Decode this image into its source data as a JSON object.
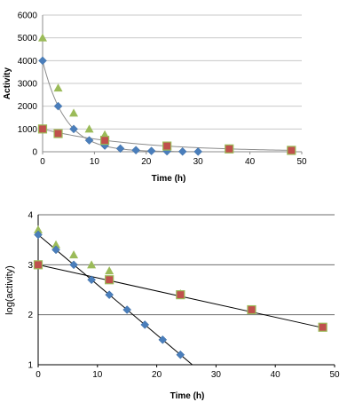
{
  "chart_data": [
    {
      "type": "scatter",
      "title": "",
      "xlabel": "Time (h)",
      "ylabel": "Activity",
      "xlim": [
        0,
        50
      ],
      "ylim": [
        0,
        6000
      ],
      "x_ticks": [
        "0",
        "10",
        "20",
        "30",
        "40",
        "50"
      ],
      "y_ticks": [
        "0",
        "1000",
        "2000",
        "3000",
        "4000",
        "5000",
        "6000"
      ],
      "grid": true,
      "legend": "none",
      "series": [
        {
          "marker": "diamond",
          "color": "#4a7ebb",
          "x": [
            0,
            3,
            6,
            9,
            12,
            15,
            18,
            21,
            24,
            27,
            30
          ],
          "y": [
            4000,
            2000,
            1000,
            500,
            270,
            140,
            70,
            35,
            20,
            10,
            5
          ]
        },
        {
          "marker": "square",
          "color": "#c0504d",
          "x": [
            0,
            3,
            12,
            24,
            36,
            48
          ],
          "y": [
            1000,
            800,
            500,
            250,
            125,
            60
          ]
        },
        {
          "marker": "triangle",
          "color": "#9bbb59",
          "x": [
            0,
            3,
            6,
            9,
            12,
            24,
            36,
            48
          ],
          "y": [
            5000,
            2800,
            1700,
            1000,
            750,
            260,
            130,
            60
          ]
        }
      ],
      "fit_curves": [
        {
          "kind": "exponential",
          "y0": 4000,
          "k_per_h": 0.2303,
          "x_range": [
            0,
            30
          ],
          "color": "#8c8c8c"
        },
        {
          "kind": "exponential",
          "y0": 1000,
          "k_per_h": 0.0576,
          "x_range": [
            0,
            48
          ],
          "color": "#8c8c8c"
        }
      ]
    },
    {
      "type": "scatter",
      "title": "",
      "xlabel": "Time (h)",
      "ylabel": "log(activity)",
      "xlim": [
        0,
        50
      ],
      "ylim": [
        1,
        4
      ],
      "x_ticks": [
        "0",
        "10",
        "20",
        "30",
        "40",
        "50"
      ],
      "y_ticks": [
        "1",
        "2",
        "3",
        "4"
      ],
      "grid": true,
      "legend": "none",
      "series": [
        {
          "marker": "diamond",
          "color": "#4a7ebb",
          "x": [
            0,
            3,
            6,
            9,
            12,
            15,
            18,
            21,
            24
          ],
          "y": [
            3.6,
            3.3,
            3.0,
            2.7,
            2.4,
            2.1,
            1.8,
            1.5,
            1.2
          ]
        },
        {
          "marker": "square",
          "color": "#c0504d",
          "x": [
            0,
            12,
            24,
            36,
            48
          ],
          "y": [
            3.0,
            2.7,
            2.4,
            2.1,
            1.75
          ]
        },
        {
          "marker": "triangle",
          "color": "#9bbb59",
          "x": [
            0,
            3,
            6,
            9,
            12,
            24,
            36,
            48
          ],
          "y": [
            3.7,
            3.4,
            3.2,
            3.0,
            2.88,
            2.42,
            2.1,
            1.75
          ]
        }
      ],
      "fit_lines": [
        {
          "x": [
            0,
            26
          ],
          "y": [
            3.6,
            1.0
          ],
          "color": "#000000"
        },
        {
          "x": [
            0,
            48
          ],
          "y": [
            3.0,
            1.74
          ],
          "color": "#000000"
        }
      ]
    }
  ]
}
